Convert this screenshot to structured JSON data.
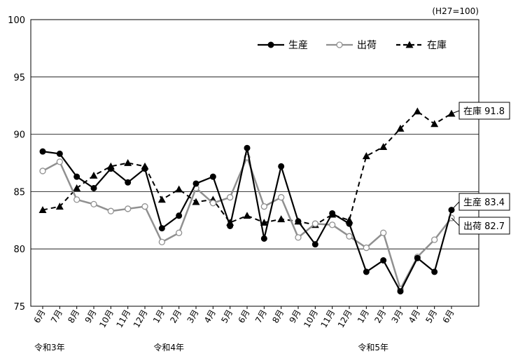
{
  "chart_data": {
    "type": "line",
    "unit_note": "(H27=100)",
    "ylim": [
      75,
      100
    ],
    "yticks": [
      75,
      80,
      85,
      90,
      95,
      100
    ],
    "grid": "horizontal",
    "legend_position": "top-right",
    "categories": [
      "6月",
      "7月",
      "8月",
      "9月",
      "10月",
      "11月",
      "12月",
      "1月",
      "2月",
      "3月",
      "4月",
      "5月",
      "6月",
      "7月",
      "8月",
      "9月",
      "10月",
      "11月",
      "12月",
      "1月",
      "2月",
      "3月",
      "4月",
      "5月",
      "6月"
    ],
    "era_labels": [
      {
        "label": "令和3年",
        "index": 0
      },
      {
        "label": "令和4年",
        "index": 7
      },
      {
        "label": "令和5年",
        "index": 19
      }
    ],
    "series": [
      {
        "name": "生産",
        "color": "#000000",
        "dash": "solid",
        "marker": "filled-circle",
        "values": [
          88.5,
          88.3,
          86.3,
          85.3,
          87.0,
          85.8,
          87.0,
          81.8,
          82.9,
          85.7,
          86.3,
          82.0,
          88.8,
          80.9,
          87.2,
          82.4,
          80.4,
          83.1,
          82.2,
          78.0,
          79.0,
          76.3,
          79.2,
          78.0,
          83.4
        ],
        "callout": "生産 83.4"
      },
      {
        "name": "出荷",
        "color": "#909090",
        "dash": "solid",
        "marker": "open-circle",
        "values": [
          86.8,
          87.6,
          84.3,
          83.9,
          83.3,
          83.5,
          83.7,
          80.6,
          81.4,
          85.3,
          84.0,
          84.5,
          88.0,
          83.7,
          84.5,
          81.0,
          82.2,
          82.1,
          81.1,
          80.1,
          81.4,
          76.5,
          79.3,
          80.8,
          82.7
        ],
        "callout": "出荷 82.7"
      },
      {
        "name": "在庫",
        "color": "#000000",
        "dash": "dashed",
        "marker": "filled-triangle",
        "values": [
          83.4,
          83.7,
          85.3,
          86.4,
          87.2,
          87.5,
          87.2,
          84.3,
          85.2,
          84.1,
          84.3,
          82.3,
          82.9,
          82.3,
          82.6,
          82.4,
          82.1,
          83.0,
          82.5,
          88.1,
          88.9,
          90.5,
          92.0,
          90.9,
          91.8
        ],
        "callout": "在庫 91.8"
      }
    ]
  }
}
